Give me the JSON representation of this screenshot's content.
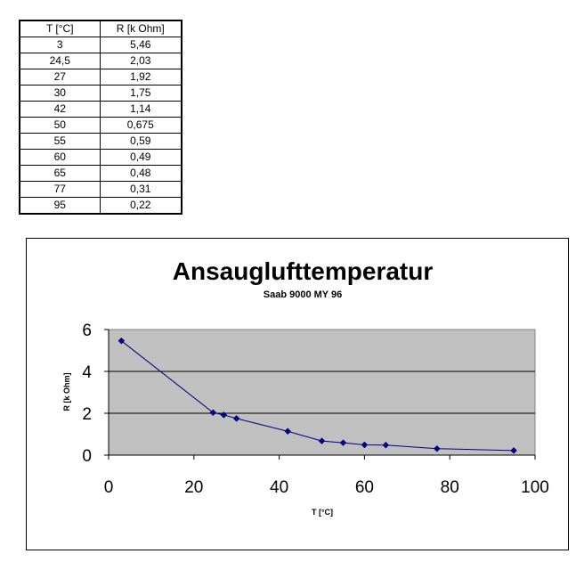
{
  "table": {
    "headers": [
      "T [°C]",
      "R [k Ohm]"
    ],
    "rows": [
      [
        "3",
        "5,46"
      ],
      [
        "24,5",
        "2,03"
      ],
      [
        "27",
        "1,92"
      ],
      [
        "30",
        "1,75"
      ],
      [
        "42",
        "1,14"
      ],
      [
        "50",
        "0,675"
      ],
      [
        "55",
        "0,59"
      ],
      [
        "60",
        "0,49"
      ],
      [
        "65",
        "0,48"
      ],
      [
        "77",
        "0,31"
      ],
      [
        "95",
        "0,22"
      ]
    ]
  },
  "chart_data": {
    "type": "line",
    "title": "Ansauglufttemperatur",
    "subtitle": "Saab 9000 MY 96",
    "xlabel": "T [°C]",
    "ylabel": "R [k Ohm]",
    "xlim": [
      0,
      100
    ],
    "ylim": [
      0,
      6
    ],
    "xticks": [
      0,
      20,
      40,
      60,
      80,
      100
    ],
    "yticks": [
      0,
      2,
      4,
      6
    ],
    "grid": true,
    "plot_background": "#c0c0c0",
    "line_color": "#000080",
    "x": [
      3,
      24.5,
      27,
      30,
      42,
      50,
      55,
      60,
      65,
      77,
      95
    ],
    "y": [
      5.46,
      2.03,
      1.92,
      1.75,
      1.14,
      0.675,
      0.59,
      0.49,
      0.48,
      0.31,
      0.22
    ]
  }
}
